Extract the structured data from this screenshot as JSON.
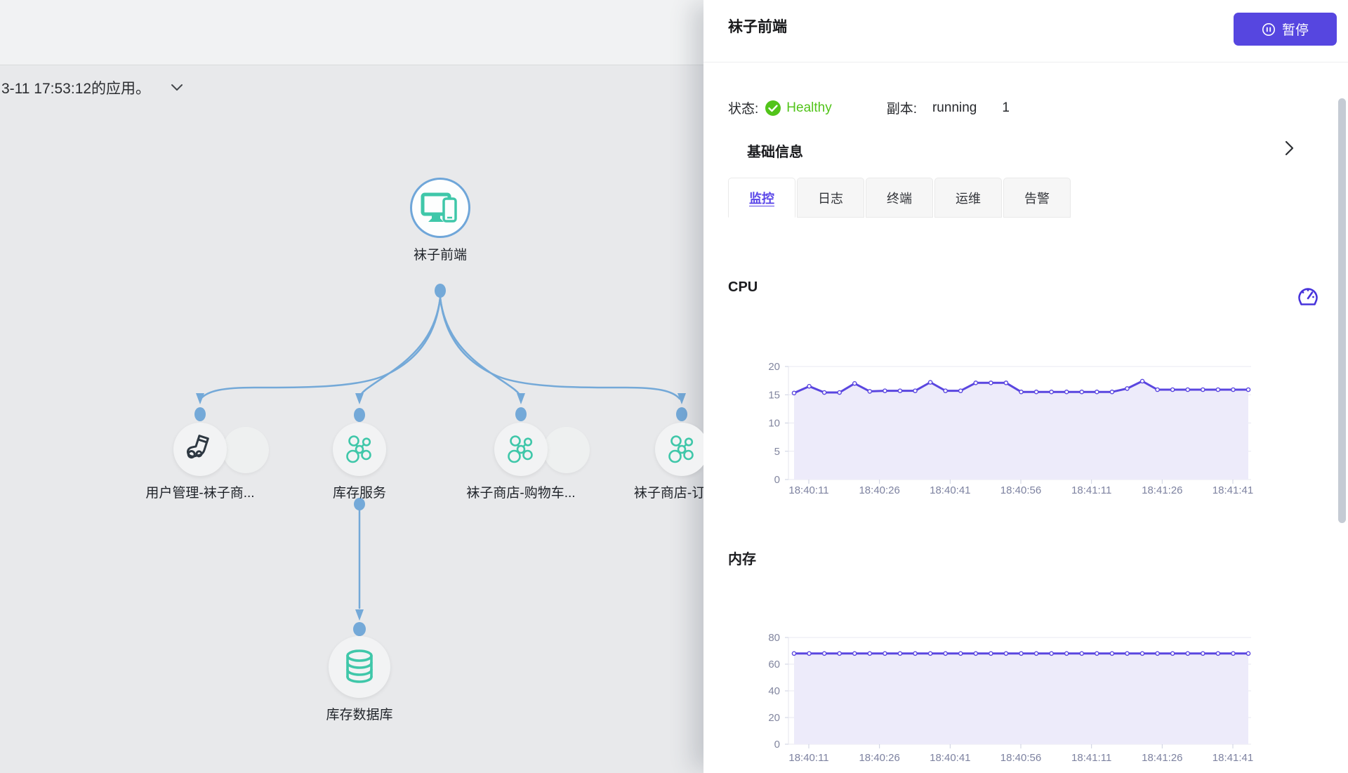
{
  "topology": {
    "toolbar_text": "3-11 17:53:12的应用。",
    "nodes": [
      {
        "label": "袜子前端"
      },
      {
        "label": "用户管理-袜子商..."
      },
      {
        "label": "库存服务"
      },
      {
        "label": "袜子商店-购物车..."
      },
      {
        "label": "袜子商店-订单..."
      },
      {
        "label": "库存数据库"
      }
    ]
  },
  "panel": {
    "title": "袜子前端",
    "pause_button_label": "暂停",
    "status": {
      "label": "状态:",
      "value": "Healthy"
    },
    "replicas": {
      "label": "副本:",
      "state": "running",
      "count": "1"
    },
    "section_title": "基础信息",
    "tabs": [
      {
        "label": "监控"
      },
      {
        "label": "日志"
      },
      {
        "label": "终端"
      },
      {
        "label": "运维"
      },
      {
        "label": "告警"
      }
    ],
    "active_tab": "监控",
    "colors": {
      "accent": "#5646e0",
      "healthy": "#52c41a",
      "chart_line": "#5a46e0",
      "chart_fill": "#edebfa"
    }
  },
  "chart_data": [
    {
      "type": "area",
      "title": "CPU",
      "x_tick_labels": [
        "18:40:11",
        "18:40:26",
        "18:40:41",
        "18:40:56",
        "18:41:11",
        "18:41:26",
        "18:41:41"
      ],
      "x_interval_seconds": 3,
      "ylim": [
        0,
        20
      ],
      "yticks": [
        0,
        5,
        10,
        15,
        20
      ],
      "values": [
        15.3,
        16.5,
        15.4,
        15.4,
        17.0,
        15.6,
        15.7,
        15.7,
        15.7,
        17.2,
        15.7,
        15.7,
        17.1,
        17.1,
        17.1,
        15.5,
        15.5,
        15.5,
        15.5,
        15.5,
        15.5,
        15.5,
        16.1,
        17.4,
        15.9,
        15.9,
        15.9,
        15.9,
        15.9,
        15.9,
        15.9
      ],
      "grid": true,
      "legend": "none"
    },
    {
      "type": "area",
      "title": "内存",
      "x_tick_labels": [
        "18:40:11",
        "18:40:26",
        "18:40:41",
        "18:40:56",
        "18:41:11",
        "18:41:26",
        "18:41:41"
      ],
      "x_interval_seconds": 3,
      "ylim": [
        0,
        80
      ],
      "yticks": [
        0,
        20,
        40,
        60,
        80
      ],
      "values": [
        68,
        68,
        68,
        68,
        68,
        68,
        68,
        68,
        68,
        68,
        68,
        68,
        68,
        68,
        68,
        68,
        68,
        68,
        68,
        68,
        68,
        68,
        68,
        68,
        68,
        68,
        68,
        68,
        68,
        68,
        68
      ],
      "grid": true,
      "legend": "none"
    }
  ]
}
